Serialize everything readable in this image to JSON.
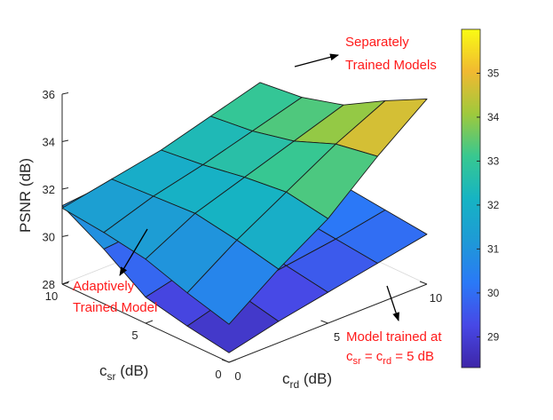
{
  "chart_data": {
    "type": "surface3d",
    "xlabel_main": "c",
    "xlabel_sub": "rd",
    "xlabel_unit": " (dB)",
    "ylabel_main": "c",
    "ylabel_sub": "sr",
    "ylabel_unit": " (dB)",
    "zlabel": "PSNR (dB)",
    "x_ticks": [
      "0",
      "5",
      "10"
    ],
    "y_ticks": [
      "0",
      "5",
      "10"
    ],
    "z_ticks": [
      "28",
      "30",
      "32",
      "34",
      "36"
    ],
    "zlim": [
      28,
      36
    ],
    "colorbar": {
      "range": [
        28.3,
        36
      ],
      "ticks": [
        "29",
        "30",
        "31",
        "32",
        "33",
        "34",
        "35"
      ]
    },
    "x": [
      0,
      2.5,
      5,
      7.5,
      10
    ],
    "y": [
      0,
      2.5,
      5,
      7.5,
      10
    ],
    "series": [
      {
        "name": "Separately Trained Models",
        "values": [
          [
            29.6,
            31.1,
            32.4,
            34.2,
            35.8
          ],
          [
            30.1,
            31.5,
            32.7,
            33.9,
            34.9
          ],
          [
            30.7,
            31.8,
            32.5,
            33.2,
            33.9
          ],
          [
            31.0,
            31.7,
            32.2,
            32.8,
            33.4
          ],
          [
            31.2,
            31.6,
            32.0,
            32.6,
            33.2
          ]
        ]
      },
      {
        "name": "Adaptively Trained Model",
        "values": [
          [
            28.4,
            28.9,
            29.3,
            29.7,
            30.1
          ],
          [
            28.7,
            29.3,
            29.6,
            29.9,
            30.3
          ],
          [
            29.1,
            29.6,
            29.9,
            30.1,
            30.5
          ],
          [
            30.3,
            30.5,
            30.6,
            30.8,
            31.0
          ],
          [
            31.3,
            31.5,
            31.7,
            31.9,
            32.0
          ]
        ]
      }
    ]
  },
  "annotations": {
    "separate_line1": "Separately",
    "separate_line2": "Trained Models",
    "adaptive_line1": "Adaptively",
    "adaptive_line2": "Trained Model",
    "model5_line1": "Model trained at",
    "model5_c": "c",
    "model5_sr": "sr",
    "model5_eq": " = c",
    "model5_rd": "rd",
    "model5_tail": " = 5 dB"
  }
}
